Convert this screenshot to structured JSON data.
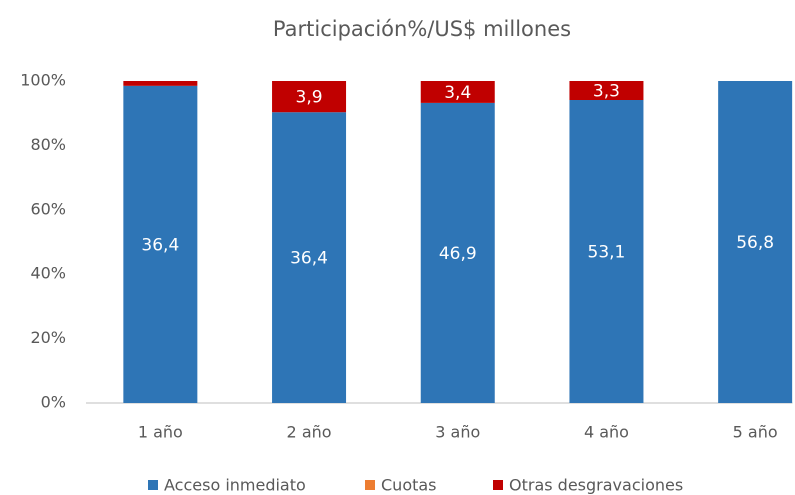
{
  "chart_data": {
    "type": "stacked_bar",
    "title": "Participación%/US$ millones",
    "categories": [
      "1 año",
      "2 año",
      "3 año",
      "4 año",
      "5 año"
    ],
    "series": [
      {
        "name": "Acceso inmediato",
        "color": "#2e75b6",
        "values": [
          98.5,
          90.3,
          93.2,
          94.1,
          100
        ],
        "annotations": [
          "36,4",
          "36,4",
          "46,9",
          "53,1",
          "56,8"
        ]
      },
      {
        "name": "Cuotas",
        "color": "#ed7d31",
        "values": [
          0,
          0,
          0,
          0,
          0
        ]
      },
      {
        "name": "Otras desgravaciones",
        "color": "#c00000",
        "values": [
          1.5,
          9.7,
          6.8,
          5.9,
          0
        ],
        "annotations": [
          null,
          "3,9",
          "3,4",
          "3,3",
          null
        ]
      }
    ],
    "ylim": [
      0,
      100
    ],
    "yticks": [
      {
        "value": 0,
        "label": "0%"
      },
      {
        "value": 20,
        "label": "20%"
      },
      {
        "value": 40,
        "label": "40%"
      },
      {
        "value": 60,
        "label": "60%"
      },
      {
        "value": 80,
        "label": "80%"
      },
      {
        "value": 100,
        "label": "100%"
      }
    ],
    "grid": false,
    "legend": "bottom"
  }
}
